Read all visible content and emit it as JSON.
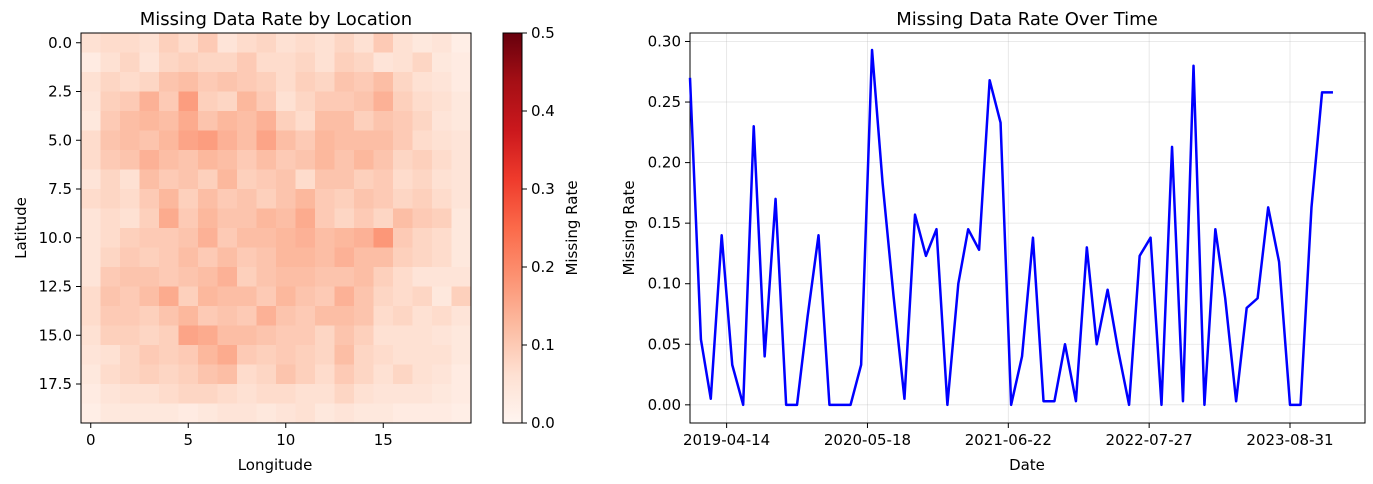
{
  "chart_data": [
    {
      "type": "heatmap",
      "title": "Missing Data Rate by Location",
      "xlabel": "Longitude",
      "ylabel": "Latitude",
      "colorbar_label": "Missing Rate",
      "colormap": "Reds",
      "vmin": 0.0,
      "vmax": 0.5,
      "grid": false,
      "x_ticks": [
        "0",
        "5",
        "10",
        "15"
      ],
      "y_ticks": [
        "0.0",
        "2.5",
        "5.0",
        "7.5",
        "10.0",
        "12.5",
        "15.0",
        "17.5"
      ],
      "colorbar_ticks": [
        "0.0",
        "0.1",
        "0.2",
        "0.3",
        "0.4",
        "0.5"
      ],
      "values": [
        [
          0.06,
          0.07,
          0.07,
          0.06,
          0.09,
          0.07,
          0.1,
          0.05,
          0.07,
          0.08,
          0.06,
          0.07,
          0.06,
          0.08,
          0.06,
          0.1,
          0.06,
          0.04,
          0.05,
          0.02
        ],
        [
          0.03,
          0.06,
          0.08,
          0.05,
          0.08,
          0.09,
          0.08,
          0.08,
          0.1,
          0.07,
          0.07,
          0.08,
          0.06,
          0.09,
          0.08,
          0.05,
          0.06,
          0.08,
          0.04,
          0.03
        ],
        [
          0.06,
          0.08,
          0.07,
          0.08,
          0.11,
          0.12,
          0.1,
          0.11,
          0.1,
          0.09,
          0.07,
          0.09,
          0.08,
          0.11,
          0.1,
          0.12,
          0.08,
          0.06,
          0.05,
          0.03
        ],
        [
          0.05,
          0.09,
          0.1,
          0.14,
          0.1,
          0.17,
          0.09,
          0.08,
          0.13,
          0.1,
          0.06,
          0.08,
          0.1,
          0.1,
          0.11,
          0.14,
          0.09,
          0.07,
          0.06,
          0.04
        ],
        [
          0.04,
          0.1,
          0.12,
          0.13,
          0.12,
          0.15,
          0.11,
          0.13,
          0.12,
          0.14,
          0.09,
          0.07,
          0.12,
          0.12,
          0.09,
          0.11,
          0.1,
          0.08,
          0.05,
          0.04
        ],
        [
          0.07,
          0.11,
          0.12,
          0.11,
          0.13,
          0.16,
          0.17,
          0.14,
          0.12,
          0.16,
          0.12,
          0.1,
          0.13,
          0.12,
          0.12,
          0.12,
          0.1,
          0.07,
          0.06,
          0.05
        ],
        [
          0.07,
          0.1,
          0.11,
          0.14,
          0.12,
          0.11,
          0.13,
          0.12,
          0.1,
          0.12,
          0.1,
          0.11,
          0.13,
          0.11,
          0.13,
          0.11,
          0.08,
          0.09,
          0.07,
          0.05
        ],
        [
          0.05,
          0.08,
          0.06,
          0.12,
          0.1,
          0.11,
          0.09,
          0.13,
          0.09,
          0.1,
          0.11,
          0.07,
          0.11,
          0.11,
          0.09,
          0.1,
          0.07,
          0.08,
          0.06,
          0.05
        ],
        [
          0.07,
          0.08,
          0.07,
          0.1,
          0.13,
          0.09,
          0.12,
          0.1,
          0.11,
          0.09,
          0.11,
          0.13,
          0.1,
          0.09,
          0.11,
          0.1,
          0.08,
          0.09,
          0.07,
          0.05
        ],
        [
          0.05,
          0.07,
          0.06,
          0.09,
          0.15,
          0.1,
          0.13,
          0.11,
          0.11,
          0.13,
          0.12,
          0.15,
          0.1,
          0.08,
          0.1,
          0.08,
          0.12,
          0.1,
          0.09,
          0.04
        ],
        [
          0.05,
          0.07,
          0.09,
          0.1,
          0.1,
          0.11,
          0.14,
          0.1,
          0.12,
          0.12,
          0.13,
          0.14,
          0.12,
          0.13,
          0.14,
          0.18,
          0.1,
          0.08,
          0.07,
          0.04
        ],
        [
          0.05,
          0.08,
          0.1,
          0.09,
          0.1,
          0.12,
          0.1,
          0.12,
          0.1,
          0.11,
          0.13,
          0.13,
          0.12,
          0.14,
          0.12,
          0.12,
          0.09,
          0.08,
          0.07,
          0.04
        ],
        [
          0.05,
          0.1,
          0.11,
          0.11,
          0.1,
          0.11,
          0.12,
          0.14,
          0.09,
          0.11,
          0.12,
          0.12,
          0.11,
          0.11,
          0.12,
          0.09,
          0.07,
          0.05,
          0.05,
          0.05
        ],
        [
          0.07,
          0.11,
          0.1,
          0.12,
          0.15,
          0.09,
          0.13,
          0.12,
          0.12,
          0.1,
          0.13,
          0.11,
          0.1,
          0.14,
          0.11,
          0.08,
          0.07,
          0.08,
          0.04,
          0.09
        ],
        [
          0.07,
          0.1,
          0.1,
          0.09,
          0.11,
          0.13,
          0.1,
          0.11,
          0.1,
          0.14,
          0.11,
          0.1,
          0.12,
          0.12,
          0.11,
          0.07,
          0.08,
          0.06,
          0.07,
          0.05
        ],
        [
          0.06,
          0.09,
          0.09,
          0.08,
          0.09,
          0.16,
          0.15,
          0.12,
          0.12,
          0.11,
          0.1,
          0.1,
          0.08,
          0.11,
          0.09,
          0.06,
          0.06,
          0.06,
          0.05,
          0.04
        ],
        [
          0.05,
          0.06,
          0.08,
          0.1,
          0.09,
          0.1,
          0.13,
          0.15,
          0.1,
          0.09,
          0.1,
          0.09,
          0.08,
          0.12,
          0.08,
          0.07,
          0.06,
          0.06,
          0.06,
          0.04
        ],
        [
          0.04,
          0.07,
          0.08,
          0.09,
          0.08,
          0.09,
          0.11,
          0.12,
          0.07,
          0.08,
          0.11,
          0.09,
          0.07,
          0.1,
          0.08,
          0.06,
          0.08,
          0.06,
          0.05,
          0.03
        ],
        [
          0.03,
          0.05,
          0.06,
          0.06,
          0.07,
          0.08,
          0.08,
          0.07,
          0.06,
          0.07,
          0.07,
          0.06,
          0.06,
          0.08,
          0.06,
          0.05,
          0.05,
          0.05,
          0.04,
          0.03
        ],
        [
          0.02,
          0.04,
          0.04,
          0.04,
          0.04,
          0.03,
          0.04,
          0.05,
          0.05,
          0.04,
          0.05,
          0.06,
          0.04,
          0.05,
          0.04,
          0.04,
          0.03,
          0.03,
          0.03,
          0.02
        ]
      ]
    },
    {
      "type": "line",
      "title": "Missing Data Rate Over Time",
      "xlabel": "Date",
      "ylabel": "Missing Rate",
      "grid": true,
      "line_color": "#0000ff",
      "x_range": [
        "2018-12-31",
        "2024-03-31"
      ],
      "ylim": [
        -0.015,
        0.307
      ],
      "x_ticks": [
        "2019-04-14",
        "2020-05-18",
        "2021-06-22",
        "2022-07-27",
        "2023-08-31"
      ],
      "y_ticks": [
        "0.00",
        "0.05",
        "0.10",
        "0.15",
        "0.20",
        "0.25",
        "0.30"
      ],
      "series": [
        {
          "x": [
            "2018-12-31",
            "2019-01-31",
            "2019-02-28",
            "2019-03-31",
            "2019-04-30",
            "2019-05-31",
            "2019-06-30",
            "2019-07-31",
            "2019-08-31",
            "2019-09-30",
            "2019-10-31",
            "2019-11-30",
            "2019-12-31",
            "2020-01-31",
            "2020-02-29",
            "2020-03-31",
            "2020-04-30",
            "2020-05-31",
            "2020-06-30",
            "2020-07-31",
            "2020-08-31",
            "2020-09-30",
            "2020-10-31",
            "2020-11-30",
            "2020-12-31",
            "2021-01-31",
            "2021-02-28",
            "2021-03-31",
            "2021-04-30",
            "2021-05-31",
            "2021-06-30",
            "2021-07-31",
            "2021-08-31",
            "2021-09-30",
            "2021-10-31",
            "2021-11-30",
            "2021-12-31",
            "2022-01-31",
            "2022-02-28",
            "2022-03-31",
            "2022-04-30",
            "2022-05-31",
            "2022-06-30",
            "2022-07-31",
            "2022-08-31",
            "2022-09-30",
            "2022-10-31",
            "2022-11-30",
            "2022-12-31",
            "2023-01-31",
            "2023-02-28",
            "2023-03-31",
            "2023-04-30",
            "2023-05-31",
            "2023-06-30",
            "2023-07-31",
            "2023-08-31",
            "2023-09-30",
            "2023-10-31",
            "2023-11-30",
            "2023-12-31"
          ],
          "y": [
            0.27,
            0.054,
            0.005,
            0.14,
            0.033,
            0.0,
            0.23,
            0.04,
            0.17,
            0.0,
            0.0,
            0.073,
            0.14,
            0.0,
            0.0,
            0.0,
            0.033,
            0.293,
            0.183,
            0.09,
            0.005,
            0.157,
            0.123,
            0.145,
            0.0,
            0.1,
            0.145,
            0.128,
            0.268,
            0.233,
            0.0,
            0.04,
            0.138,
            0.003,
            0.003,
            0.05,
            0.003,
            0.13,
            0.05,
            0.095,
            0.045,
            0.0,
            0.123,
            0.138,
            0.0,
            0.213,
            0.003,
            0.28,
            0.0,
            0.145,
            0.088,
            0.003,
            0.08,
            0.088,
            0.163,
            0.118,
            0.0,
            0.0,
            0.163,
            0.258,
            0.258
          ]
        }
      ]
    }
  ]
}
